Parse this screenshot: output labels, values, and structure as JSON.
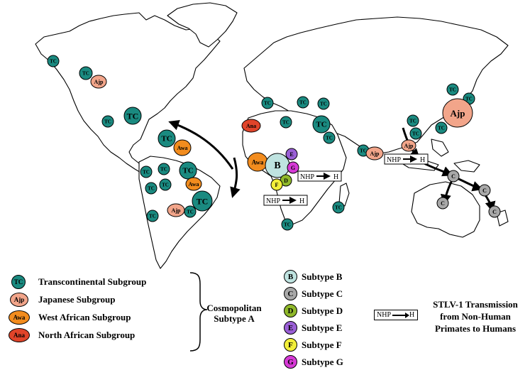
{
  "map": {
    "markers": {
      "tc": "TC",
      "ajp": "Ajp",
      "awa": "Awa",
      "ana": "Ana",
      "b": "B",
      "c": "C",
      "d": "D",
      "e": "E",
      "f": "F",
      "g": "G"
    },
    "nhp_box": {
      "from": "NHP",
      "to": "H"
    }
  },
  "legend": {
    "subgroups": [
      {
        "abbr": "TC",
        "label": "Transcontinental Subgroup",
        "color": "#1a8a80"
      },
      {
        "abbr": "Ajp",
        "label": "Japanese Subgroup",
        "color": "#f2a58a"
      },
      {
        "abbr": "Awa",
        "label": "West African Subgroup",
        "color": "#f28c1e"
      },
      {
        "abbr": "Ana",
        "label": "North African Subgroup",
        "color": "#e0442a"
      }
    ],
    "cosmopolitan_line1": "Cosmopolitan",
    "cosmopolitan_line2": "Subtype A",
    "subtypes": [
      {
        "abbr": "B",
        "label": "Subtype B",
        "color": "#bfe3e0"
      },
      {
        "abbr": "C",
        "label": "Subtype C",
        "color": "#a8a8a8"
      },
      {
        "abbr": "D",
        "label": "Subtype D",
        "color": "#8fb82a"
      },
      {
        "abbr": "E",
        "label": "Subtype E",
        "color": "#9a5fd6"
      },
      {
        "abbr": "F",
        "label": "Subtype F",
        "color": "#f2ef3a"
      },
      {
        "abbr": "G",
        "label": "Subtype G",
        "color": "#d63ad6"
      }
    ],
    "stlv_line1": "STLV-1 Transmission",
    "stlv_line2": "from Non-Human",
    "stlv_line3": "Primates to Humans"
  },
  "colors": {
    "tc": "#1a8a80",
    "ajp": "#f2a58a",
    "awa": "#f28c1e",
    "ana": "#e0442a",
    "b": "#bfe3e0",
    "c": "#a8a8a8",
    "d": "#8fb82a",
    "e": "#9a5fd6",
    "f": "#f2ef3a",
    "g": "#d63ad6"
  }
}
